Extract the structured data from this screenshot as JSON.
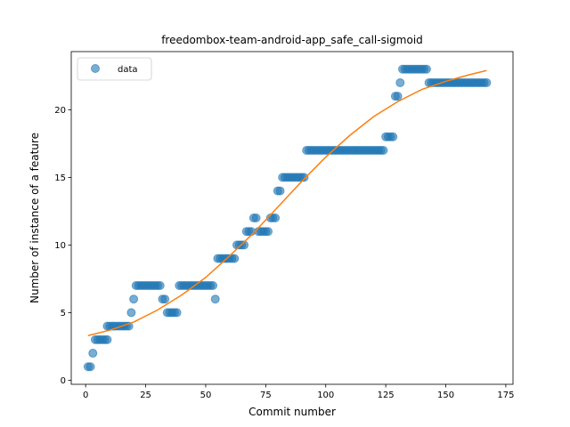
{
  "chart_data": {
    "type": "scatter",
    "title": "freedombox-team-android-app_safe_call-sigmoid",
    "xlabel": "Commit number",
    "ylabel": "Number of instance of a feature",
    "xlim": [
      -6,
      178
    ],
    "ylim": [
      -0.3,
      24.3
    ],
    "xticks": [
      0,
      25,
      50,
      75,
      100,
      125,
      150,
      175
    ],
    "yticks": [
      0,
      5,
      10,
      15,
      20
    ],
    "grid": false,
    "legend_position": "top-left",
    "legend": [
      "data"
    ],
    "colors": {
      "data": "#1f77b4",
      "fit": "#ff7f0e"
    },
    "series": [
      {
        "name": "data",
        "kind": "scatter",
        "points": [
          [
            1,
            1
          ],
          [
            2,
            1
          ],
          [
            3,
            2
          ],
          [
            4,
            3
          ],
          [
            5,
            3
          ],
          [
            6,
            3
          ],
          [
            7,
            3
          ],
          [
            8,
            3
          ],
          [
            9,
            4
          ],
          [
            9,
            3
          ],
          [
            10,
            4
          ],
          [
            11,
            4
          ],
          [
            12,
            4
          ],
          [
            13,
            4
          ],
          [
            14,
            4
          ],
          [
            15,
            4
          ],
          [
            16,
            4
          ],
          [
            17,
            4
          ],
          [
            18,
            4
          ],
          [
            19,
            5
          ],
          [
            20,
            6
          ],
          [
            21,
            7
          ],
          [
            22,
            7
          ],
          [
            23,
            7
          ],
          [
            24,
            7
          ],
          [
            25,
            7
          ],
          [
            26,
            7
          ],
          [
            27,
            7
          ],
          [
            28,
            7
          ],
          [
            29,
            7
          ],
          [
            30,
            7
          ],
          [
            31,
            7
          ],
          [
            32,
            6
          ],
          [
            33,
            6
          ],
          [
            34,
            5
          ],
          [
            35,
            5
          ],
          [
            36,
            5
          ],
          [
            37,
            5
          ],
          [
            38,
            5
          ],
          [
            39,
            7
          ],
          [
            40,
            7
          ],
          [
            41,
            7
          ],
          [
            42,
            7
          ],
          [
            43,
            7
          ],
          [
            44,
            7
          ],
          [
            45,
            7
          ],
          [
            46,
            7
          ],
          [
            47,
            7
          ],
          [
            48,
            7
          ],
          [
            49,
            7
          ],
          [
            50,
            7
          ],
          [
            51,
            7
          ],
          [
            52,
            7
          ],
          [
            53,
            7
          ],
          [
            54,
            6
          ],
          [
            55,
            9
          ],
          [
            56,
            9
          ],
          [
            57,
            9
          ],
          [
            58,
            9
          ],
          [
            59,
            9
          ],
          [
            60,
            9
          ],
          [
            61,
            9
          ],
          [
            62,
            9
          ],
          [
            63,
            10
          ],
          [
            64,
            10
          ],
          [
            65,
            10
          ],
          [
            66,
            10
          ],
          [
            67,
            11
          ],
          [
            68,
            11
          ],
          [
            69,
            11
          ],
          [
            70,
            12
          ],
          [
            71,
            12
          ],
          [
            72,
            11
          ],
          [
            73,
            11
          ],
          [
            74,
            11
          ],
          [
            75,
            11
          ],
          [
            76,
            11
          ],
          [
            77,
            12
          ],
          [
            78,
            12
          ],
          [
            79,
            12
          ],
          [
            80,
            14
          ],
          [
            81,
            14
          ],
          [
            82,
            15
          ],
          [
            83,
            15
          ],
          [
            84,
            15
          ],
          [
            85,
            15
          ],
          [
            86,
            15
          ],
          [
            87,
            15
          ],
          [
            88,
            15
          ],
          [
            89,
            15
          ],
          [
            90,
            15
          ],
          [
            91,
            15
          ],
          [
            92,
            17
          ],
          [
            93,
            17
          ],
          [
            94,
            17
          ],
          [
            95,
            17
          ],
          [
            96,
            17
          ],
          [
            97,
            17
          ],
          [
            98,
            17
          ],
          [
            99,
            17
          ],
          [
            100,
            17
          ],
          [
            101,
            17
          ],
          [
            102,
            17
          ],
          [
            103,
            17
          ],
          [
            104,
            17
          ],
          [
            105,
            17
          ],
          [
            106,
            17
          ],
          [
            107,
            17
          ],
          [
            108,
            17
          ],
          [
            109,
            17
          ],
          [
            110,
            17
          ],
          [
            111,
            17
          ],
          [
            112,
            17
          ],
          [
            113,
            17
          ],
          [
            114,
            17
          ],
          [
            115,
            17
          ],
          [
            116,
            17
          ],
          [
            117,
            17
          ],
          [
            118,
            17
          ],
          [
            119,
            17
          ],
          [
            120,
            17
          ],
          [
            121,
            17
          ],
          [
            122,
            17
          ],
          [
            123,
            17
          ],
          [
            124,
            17
          ],
          [
            125,
            18
          ],
          [
            126,
            18
          ],
          [
            127,
            18
          ],
          [
            128,
            18
          ],
          [
            129,
            21
          ],
          [
            130,
            21
          ],
          [
            131,
            22
          ],
          [
            132,
            23
          ],
          [
            133,
            23
          ],
          [
            134,
            23
          ],
          [
            135,
            23
          ],
          [
            136,
            23
          ],
          [
            137,
            23
          ],
          [
            138,
            23
          ],
          [
            139,
            23
          ],
          [
            140,
            23
          ],
          [
            141,
            23
          ],
          [
            142,
            23
          ],
          [
            143,
            22
          ],
          [
            144,
            22
          ],
          [
            145,
            22
          ],
          [
            146,
            22
          ],
          [
            147,
            22
          ],
          [
            148,
            22
          ],
          [
            149,
            22
          ],
          [
            150,
            22
          ],
          [
            151,
            22
          ],
          [
            152,
            22
          ],
          [
            153,
            22
          ],
          [
            154,
            22
          ],
          [
            155,
            22
          ],
          [
            156,
            22
          ],
          [
            157,
            22
          ],
          [
            158,
            22
          ],
          [
            159,
            22
          ],
          [
            160,
            22
          ],
          [
            161,
            22
          ],
          [
            162,
            22
          ],
          [
            163,
            22
          ],
          [
            164,
            22
          ],
          [
            165,
            22
          ],
          [
            166,
            22
          ],
          [
            167,
            22
          ]
        ]
      },
      {
        "kind": "line",
        "points": [
          [
            1,
            3.3
          ],
          [
            10,
            3.7
          ],
          [
            20,
            4.3
          ],
          [
            30,
            5.2
          ],
          [
            40,
            6.3
          ],
          [
            50,
            7.6
          ],
          [
            60,
            9.2
          ],
          [
            70,
            10.9
          ],
          [
            80,
            12.8
          ],
          [
            90,
            14.7
          ],
          [
            100,
            16.5
          ],
          [
            110,
            18.1
          ],
          [
            120,
            19.5
          ],
          [
            130,
            20.6
          ],
          [
            140,
            21.5
          ],
          [
            150,
            22.1
          ],
          [
            160,
            22.6
          ],
          [
            167,
            22.9
          ]
        ]
      }
    ]
  }
}
